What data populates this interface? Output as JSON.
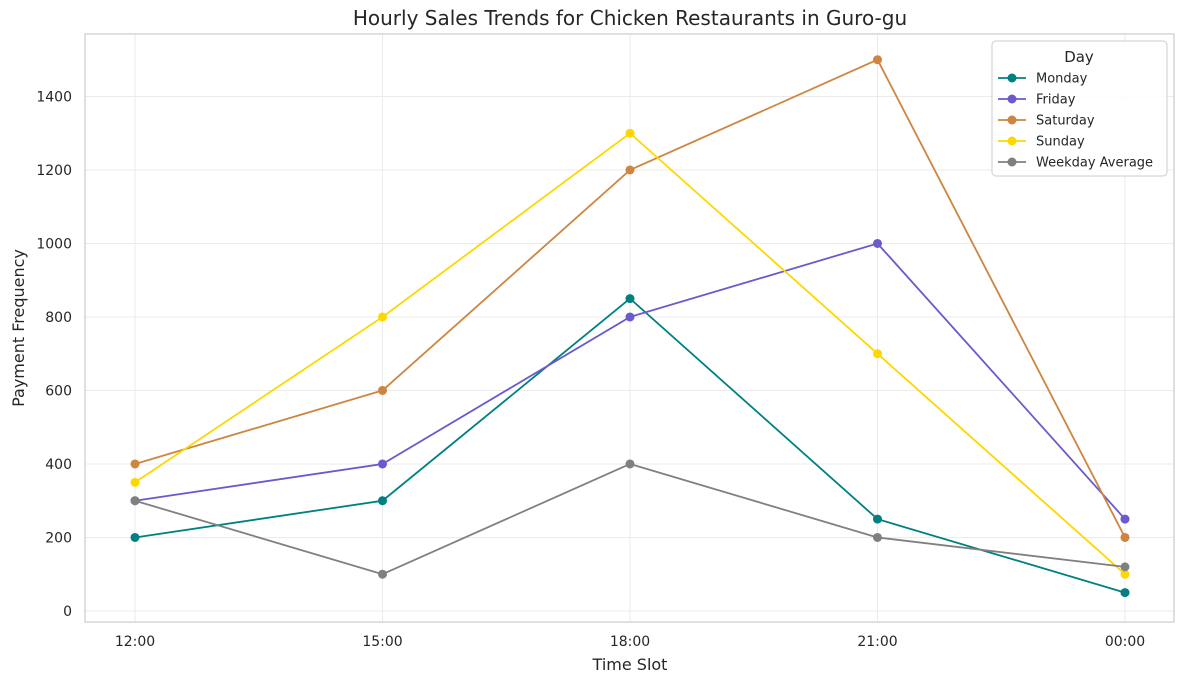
{
  "chart_data": {
    "type": "line",
    "title": "Hourly Sales Trends for Chicken Restaurants in Guro-gu",
    "xlabel": "Time Slot",
    "ylabel": "Payment Frequency",
    "categories": [
      "12:00",
      "15:00",
      "18:00",
      "21:00",
      "00:00"
    ],
    "ylim": [
      -30,
      1570
    ],
    "yticks": [
      0,
      200,
      400,
      600,
      800,
      1000,
      1200,
      1400
    ],
    "grid": true,
    "legend": {
      "title": "Day",
      "placement": "top-right"
    },
    "series": [
      {
        "name": "Monday",
        "color": "#008080",
        "values": [
          200,
          300,
          850,
          250,
          50
        ]
      },
      {
        "name": "Friday",
        "color": "#6a5acd",
        "values": [
          300,
          400,
          800,
          1000,
          250
        ]
      },
      {
        "name": "Saturday",
        "color": "#cd853f",
        "values": [
          400,
          600,
          1200,
          1500,
          200
        ]
      },
      {
        "name": "Sunday",
        "color": "#ffd700",
        "values": [
          350,
          800,
          1300,
          700,
          100
        ]
      },
      {
        "name": "Weekday Average",
        "color": "#808080",
        "values": [
          300,
          100,
          400,
          200,
          120
        ]
      }
    ]
  }
}
